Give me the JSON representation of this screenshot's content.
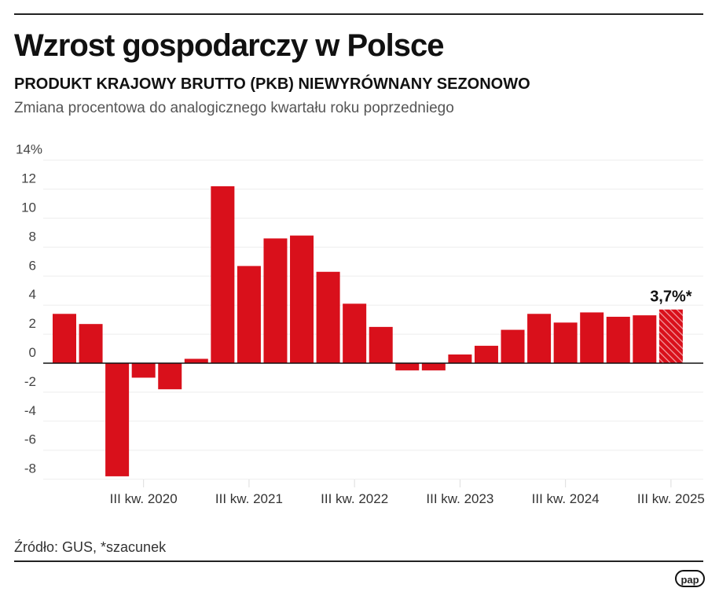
{
  "title": "Wzrost gospodarczy w Polsce",
  "subtitle": "PRODUKT KRAJOWY BRUTTO (PKB) NIEWYRÓWNANY SEZONOWO",
  "description": "Zmiana procentowa do analogicznego kwartału roku poprzedniego",
  "source": "Źródło: GUS, *szacunek",
  "logo": "pap",
  "chart_data": {
    "type": "bar",
    "ylim": [
      -8,
      14
    ],
    "yticks": [
      "14%",
      "12",
      "10",
      "8",
      "6",
      "4",
      "2",
      "0",
      "-2",
      "-4",
      "-6",
      "-8"
    ],
    "ytick_values": [
      14,
      12,
      10,
      8,
      6,
      4,
      2,
      0,
      -2,
      -4,
      -6,
      -8
    ],
    "xtick_labels": [
      {
        "index": 3,
        "label": "III kw. 2020"
      },
      {
        "index": 7,
        "label": "III kw. 2021"
      },
      {
        "index": 11,
        "label": "III kw. 2022"
      },
      {
        "index": 15,
        "label": "III kw. 2023"
      },
      {
        "index": 19,
        "label": "III kw. 2024"
      },
      {
        "index": 23,
        "label": "III kw. 2025"
      }
    ],
    "values": [
      3.4,
      2.7,
      -7.8,
      -1.0,
      -1.8,
      0.3,
      12.2,
      6.7,
      8.6,
      8.8,
      6.3,
      4.1,
      2.5,
      -0.5,
      -0.5,
      0.6,
      1.2,
      2.3,
      3.4,
      2.8,
      3.5,
      3.2,
      3.3,
      3.7
    ],
    "estimated_last": true,
    "annotation": "3,7%*",
    "grid": true,
    "bar_color": "#d9101b",
    "estimate_color": "#e8585f"
  }
}
